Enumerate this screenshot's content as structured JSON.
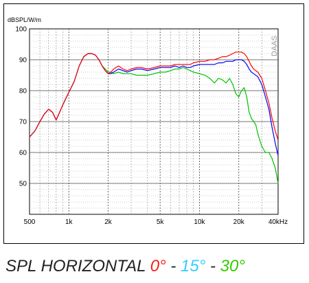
{
  "caption": {
    "prefix": "SPL HORIZONTAL ",
    "angle_0": "0°",
    "sep1": " - ",
    "angle_15": "15°",
    "sep2": " - ",
    "angle_30": "30°",
    "colors": {
      "text": "#222222",
      "angle_0": "#ff1a1a",
      "angle_15": "#33ccff",
      "angle_30": "#33cc00"
    }
  },
  "chart_data": {
    "type": "line",
    "ylabel": "dBSPL/W/m",
    "watermark": "DAAS",
    "xscale": "log",
    "xlim": [
      500,
      40000
    ],
    "ylim": [
      40,
      100
    ],
    "grid": true,
    "x_ticks": [
      500,
      1000,
      2000,
      5000,
      10000,
      20000,
      40000
    ],
    "x_tick_labels": [
      "500",
      "1k",
      "2k",
      "5k",
      "10k",
      "20k",
      "40kHz"
    ],
    "y_ticks": [
      50,
      60,
      70,
      80,
      90,
      100
    ],
    "y_tick_labels": [
      "50",
      "60",
      "70",
      "80",
      "90",
      "100"
    ],
    "series": [
      {
        "color": "#00c000",
        "x": [
          500,
          550,
          600,
          650,
          700,
          750,
          800,
          850,
          900,
          1000,
          1100,
          1200,
          1300,
          1400,
          1500,
          1600,
          1700,
          1800,
          1900,
          2000,
          2100,
          2200,
          2400,
          2600,
          2800,
          3000,
          3300,
          3600,
          4000,
          4500,
          5000,
          5500,
          6000,
          6500,
          7000,
          7500,
          8000,
          8500,
          9000,
          10000,
          11000,
          12000,
          13000,
          14000,
          15000,
          16000,
          17000,
          18000,
          19000,
          20000,
          21000,
          22000,
          23000,
          24000,
          25000,
          26000,
          27000,
          28000,
          30000,
          32000,
          34000,
          36000,
          38000,
          40000
        ],
        "y": [
          65,
          67,
          70,
          72.5,
          74,
          73,
          70.5,
          73,
          75.5,
          79.5,
          83,
          88,
          91,
          92,
          92,
          91.5,
          90,
          88,
          87,
          86,
          86,
          85.5,
          86,
          85.5,
          85.5,
          85.5,
          85,
          85,
          85,
          85.5,
          86,
          86,
          86.5,
          87,
          87,
          87.5,
          87,
          86.5,
          86,
          85.5,
          85,
          84,
          82.5,
          84,
          83.5,
          82.5,
          84,
          82,
          79,
          78,
          80,
          81,
          78,
          73,
          71,
          70,
          69,
          66,
          62,
          60,
          60,
          58,
          55,
          50
        ]
      },
      {
        "color": "#0000ff",
        "x": [
          500,
          550,
          600,
          650,
          700,
          750,
          800,
          850,
          900,
          1000,
          1100,
          1200,
          1300,
          1400,
          1500,
          1600,
          1700,
          1800,
          1900,
          2000,
          2100,
          2200,
          2400,
          2600,
          2800,
          3000,
          3300,
          3600,
          4000,
          4500,
          5000,
          5500,
          6000,
          6500,
          7000,
          7500,
          8000,
          8500,
          9000,
          10000,
          11000,
          12000,
          13000,
          14000,
          15000,
          16000,
          17000,
          18000,
          19000,
          20000,
          21000,
          22000,
          23000,
          24000,
          25000,
          26000,
          27000,
          28000,
          30000,
          32000,
          34000,
          36000,
          38000,
          40000
        ],
        "y": [
          65,
          67,
          70,
          72.5,
          74,
          73,
          70.5,
          73,
          75.5,
          79.5,
          83,
          88,
          91,
          92,
          92,
          91.5,
          90,
          88,
          86.5,
          85.5,
          85.5,
          86,
          87,
          86.5,
          86,
          86.5,
          87,
          87,
          86.5,
          87,
          87.5,
          87.5,
          87.5,
          88,
          87.5,
          88,
          87.5,
          87.5,
          88,
          88.5,
          88.5,
          88.5,
          88.5,
          89,
          89,
          89.5,
          89.5,
          89.5,
          90,
          90,
          90,
          89.5,
          88.5,
          87,
          86,
          85.5,
          85,
          84.5,
          82,
          78,
          74,
          68,
          63,
          59
        ]
      },
      {
        "color": "#ff0000",
        "x": [
          500,
          550,
          600,
          650,
          700,
          750,
          800,
          850,
          900,
          1000,
          1100,
          1200,
          1300,
          1400,
          1500,
          1600,
          1700,
          1800,
          1900,
          2000,
          2100,
          2200,
          2400,
          2600,
          2800,
          3000,
          3300,
          3600,
          4000,
          4500,
          5000,
          5500,
          6000,
          6500,
          7000,
          7500,
          8000,
          8500,
          9000,
          10000,
          11000,
          12000,
          13000,
          14000,
          15000,
          16000,
          17000,
          18000,
          19000,
          20000,
          21000,
          22000,
          23000,
          24000,
          25000,
          26000,
          27000,
          28000,
          30000,
          32000,
          34000,
          36000,
          38000,
          40000
        ],
        "y": [
          65,
          67,
          70,
          72.5,
          74,
          73,
          70.5,
          73,
          75.5,
          79.5,
          83,
          88,
          91,
          92,
          92,
          91.5,
          90,
          88,
          86.5,
          85.5,
          86,
          87,
          88,
          87,
          86.5,
          87,
          87.5,
          87.5,
          87,
          87.5,
          88,
          88,
          88,
          88.5,
          88.5,
          88.5,
          88.5,
          88.5,
          89,
          89.5,
          89.5,
          90,
          90,
          90.5,
          91,
          91,
          91.5,
          92,
          92.5,
          92.5,
          92.5,
          92,
          91,
          89.5,
          88,
          87,
          86.5,
          86,
          84,
          80,
          76,
          71,
          67,
          64
        ]
      }
    ]
  }
}
